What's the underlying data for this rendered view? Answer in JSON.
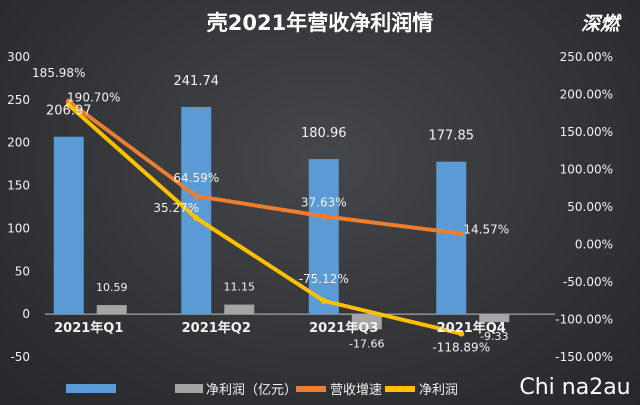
{
  "header": {
    "watermark_top": "深燃",
    "watermark_bottom": "Chi na2au"
  },
  "colors": {
    "revenue_bar": "#5b9bd5",
    "profit_bar": "#a5a5a5",
    "growth_line": "#ed7d31",
    "margin_line": "#ffc000",
    "background": "#35373a",
    "text": "#f2f2f2"
  },
  "chart_data": {
    "type": "bar",
    "title": "壳2021年营收净利润情",
    "categories": [
      "2021年Q1",
      "2021年Q2",
      "2021年Q3",
      "2021年Q4"
    ],
    "ylim": [
      -50,
      300
    ],
    "y_ticks": [
      -50,
      0,
      50,
      100,
      150,
      200,
      250,
      300
    ],
    "y2lim": [
      -1.5,
      2.5
    ],
    "y2_ticks": [
      "-150.00%",
      "-100.00%",
      "-50.00%",
      "0.00%",
      "50.00%",
      "100.00%",
      "150.00%",
      "200.00%",
      "250.00%"
    ],
    "y2_tick_values": [
      -1.5,
      -1.0,
      -0.5,
      0,
      0.5,
      1.0,
      1.5,
      2.0,
      2.5
    ],
    "series": [
      {
        "name": "",
        "kind": "bar",
        "axis": "left",
        "values": [
          206.97,
          241.74,
          180.96,
          177.85
        ],
        "labels": [
          "206.97",
          "241.74",
          "180.96",
          "177.85"
        ]
      },
      {
        "name": "净利润（亿元）",
        "kind": "bar",
        "axis": "left",
        "values": [
          10.59,
          11.15,
          -17.66,
          -9.33
        ],
        "labels": [
          "10.59",
          "11.15",
          "-17.66",
          "-9.33"
        ]
      },
      {
        "name": "营收增速",
        "kind": "line",
        "axis": "right",
        "values": [
          1.907,
          0.6459,
          0.3763,
          0.1457
        ],
        "labels": [
          "190.70%",
          "64.59%",
          "37.63%",
          "14.57%"
        ]
      },
      {
        "name": "净利润",
        "kind": "line",
        "axis": "right",
        "values": [
          1.8598,
          0.3527,
          -0.7512,
          -1.1889
        ],
        "labels": [
          "185.98%",
          "35.27%",
          "-75.12%",
          "-118.89%"
        ]
      }
    ],
    "grid": false,
    "legend_position": "bottom"
  }
}
